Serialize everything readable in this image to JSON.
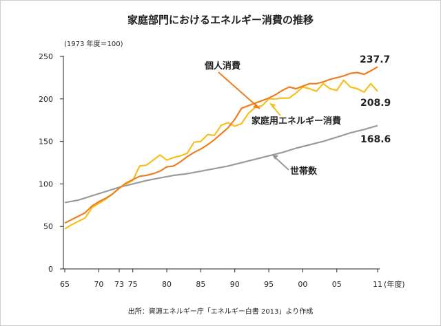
{
  "chart_data": {
    "type": "line",
    "title": "家庭部門におけるエネルギー消費の推移",
    "index_note": "(1973 年度＝100)",
    "x_unit": "(年度)",
    "source": "出所：資源エネルギー庁「エネルギー白書 2013」より作成",
    "xlim": [
      1965,
      2011
    ],
    "ylim": [
      0,
      250
    ],
    "y_ticks": [
      0,
      50,
      100,
      150,
      200,
      250
    ],
    "x_ticks": [
      {
        "year": 1965,
        "label": "65"
      },
      {
        "year": 1970,
        "label": "70"
      },
      {
        "year": 1973,
        "label": "73"
      },
      {
        "year": 1975,
        "label": "75"
      },
      {
        "year": 1980,
        "label": "80"
      },
      {
        "year": 1985,
        "label": "85"
      },
      {
        "year": 1990,
        "label": "90"
      },
      {
        "year": 1995,
        "label": "95"
      },
      {
        "year": 2000,
        "label": "00"
      },
      {
        "year": 2005,
        "label": "05"
      },
      {
        "year": 2011,
        "label": "11"
      }
    ],
    "grid": false,
    "series": [
      {
        "name": "個人消費",
        "color": "#ef7d1f",
        "end_label": "237.7",
        "x": [
          1965,
          1966,
          1967,
          1968,
          1969,
          1970,
          1971,
          1972,
          1973,
          1974,
          1975,
          1976,
          1977,
          1978,
          1979,
          1980,
          1981,
          1982,
          1983,
          1984,
          1985,
          1986,
          1987,
          1988,
          1989,
          1990,
          1991,
          1992,
          1993,
          1994,
          1995,
          1996,
          1997,
          1998,
          1999,
          2000,
          2001,
          2002,
          2003,
          2004,
          2005,
          2006,
          2007,
          2008,
          2009,
          2010,
          2011
        ],
        "y": [
          54,
          58,
          62,
          66,
          74,
          79,
          83,
          88,
          95,
          101,
          105,
          109,
          110,
          112,
          115,
          120,
          121,
          126,
          132,
          137,
          141,
          146,
          152,
          159,
          166,
          176,
          189,
          192,
          195,
          198,
          201,
          205,
          210,
          214,
          212,
          215,
          218,
          218,
          220,
          223,
          225,
          227,
          230,
          231,
          229,
          233,
          237.7
        ]
      },
      {
        "name": "家庭用エネルギー消費",
        "color": "#f7be1c",
        "end_label": "208.9",
        "x": [
          1965,
          1966,
          1967,
          1968,
          1969,
          1970,
          1971,
          1972,
          1973,
          1974,
          1975,
          1976,
          1977,
          1978,
          1979,
          1980,
          1981,
          1982,
          1983,
          1984,
          1985,
          1986,
          1987,
          1988,
          1989,
          1990,
          1991,
          1992,
          1993,
          1994,
          1995,
          1996,
          1997,
          1998,
          1999,
          2000,
          2001,
          2002,
          2003,
          2004,
          2005,
          2006,
          2007,
          2008,
          2009,
          2010,
          2011
        ],
        "y": [
          47,
          52,
          56,
          60,
          72,
          77,
          82,
          88,
          95,
          100,
          104,
          121,
          122,
          128,
          134,
          128,
          131,
          133,
          136,
          149,
          150,
          158,
          157,
          169,
          172,
          168,
          171,
          183,
          190,
          192,
          200,
          200,
          201,
          201,
          207,
          214,
          212,
          209,
          218,
          212,
          210,
          222,
          214,
          212,
          208,
          218,
          208.9
        ]
      },
      {
        "name": "世帯数",
        "color": "#9a9a9a",
        "end_label": "168.6",
        "x": [
          1965,
          1967,
          1969,
          1971,
          1973,
          1975,
          1977,
          1979,
          1981,
          1983,
          1985,
          1987,
          1989,
          1991,
          1993,
          1995,
          1997,
          1999,
          2001,
          2003,
          2005,
          2007,
          2009,
          2011
        ],
        "y": [
          78,
          81,
          86,
          91,
          96,
          100,
          104,
          107,
          110,
          112,
          115,
          118,
          121,
          125,
          129,
          133,
          137,
          142,
          146,
          150,
          155,
          160,
          164,
          168.6
        ]
      }
    ]
  }
}
